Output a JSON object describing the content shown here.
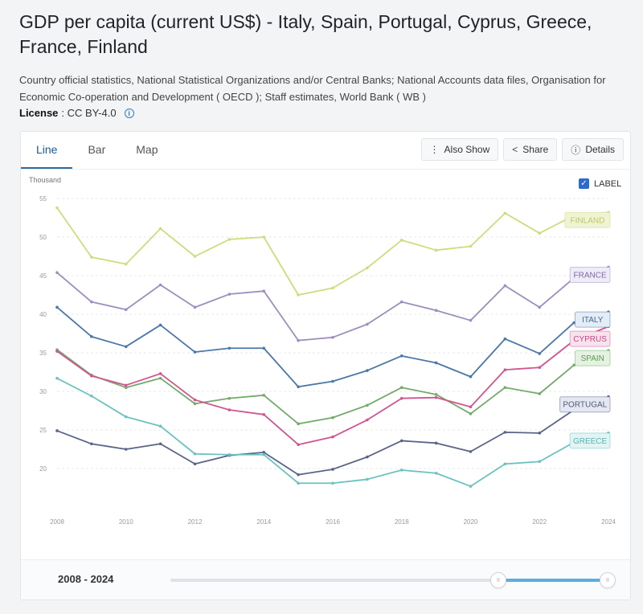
{
  "header": {
    "title": "GDP per capita (current US$) - Italy, Spain, Portugal, Cyprus, Greece, France, Finland",
    "source": "Country official statistics, National Statistical Organizations and/or Central Banks; National Accounts data files, Organisation for Economic Co-operation and Development ( OECD ); Staff estimates, World Bank ( WB )",
    "license_label": "License",
    "license_value": ": CC BY-4.0"
  },
  "tabs": [
    {
      "label": "Line",
      "active": true
    },
    {
      "label": "Bar",
      "active": false
    },
    {
      "label": "Map",
      "active": false
    }
  ],
  "actions": {
    "also_show": "Also Show",
    "share": "Share",
    "details": "Details"
  },
  "label_toggle": {
    "label": "LABEL",
    "checked": true
  },
  "footer": {
    "range_start": "2008",
    "range_separator": " - ",
    "range_end": "2024",
    "handle_start_text": "II",
    "handle_end_text": "II",
    "selected_fraction": [
      0.75,
      1.0
    ]
  },
  "chart_data": {
    "type": "line",
    "ylabel": "Thousand",
    "xlim": [
      2008,
      2024
    ],
    "ylim": [
      15,
      55
    ],
    "y_ticks": [
      20,
      25,
      30,
      35,
      40,
      45,
      50,
      55
    ],
    "x_ticks": [
      2008,
      2010,
      2012,
      2014,
      2016,
      2018,
      2020,
      2022,
      2024
    ],
    "grid": true,
    "x": [
      2008,
      2009,
      2010,
      2011,
      2012,
      2013,
      2014,
      2015,
      2016,
      2017,
      2018,
      2019,
      2020,
      2021,
      2022,
      2023,
      2024
    ],
    "series": [
      {
        "name": "FINLAND",
        "color": "#cddc7c",
        "label_bg": "#f1f4d4",
        "label_text": "#bcc767",
        "values": [
          53.8,
          47.4,
          46.5,
          51.1,
          47.5,
          49.7,
          50.0,
          42.5,
          43.4,
          46.0,
          49.6,
          48.3,
          48.8,
          53.1,
          50.5,
          52.8,
          53.2
        ]
      },
      {
        "name": "FRANCE",
        "color": "#9e8dc0",
        "label_bg": "#f0ecf7",
        "label_text": "#7d6aa8",
        "values": [
          45.4,
          41.6,
          40.6,
          43.8,
          40.9,
          42.6,
          43.0,
          36.6,
          37.0,
          38.7,
          41.6,
          40.5,
          39.2,
          43.7,
          40.9,
          44.7,
          46.1
        ]
      },
      {
        "name": "ITALY",
        "color": "#4a78a8",
        "label_bg": "#e4edf6",
        "label_text": "#3f6d9c",
        "values": [
          40.9,
          37.1,
          35.8,
          38.6,
          35.1,
          35.6,
          35.6,
          30.6,
          31.3,
          32.7,
          34.6,
          33.7,
          31.9,
          36.8,
          34.9,
          38.9,
          40.3
        ]
      },
      {
        "name": "SPAIN",
        "color": "#74aa6a",
        "label_bg": "#e5f2e2",
        "label_text": "#5f9855",
        "values": [
          35.4,
          32.1,
          30.5,
          31.7,
          28.4,
          29.1,
          29.5,
          25.8,
          26.6,
          28.2,
          30.5,
          29.6,
          27.1,
          30.5,
          29.7,
          33.4,
          35.3
        ]
      },
      {
        "name": "CYPRUS",
        "color": "#d05590",
        "label_bg": "#f8e2ed",
        "label_text": "#c24a84",
        "values": [
          35.2,
          32.0,
          30.8,
          32.3,
          28.9,
          27.6,
          27.0,
          23.1,
          24.1,
          26.3,
          29.1,
          29.2,
          28.0,
          32.8,
          33.1,
          36.6,
          38.4
        ]
      },
      {
        "name": "PORTUGAL",
        "color": "#5a6488",
        "label_bg": "#e6e8f1",
        "label_text": "#515b7e",
        "values": [
          24.9,
          23.2,
          22.5,
          23.2,
          20.6,
          21.7,
          22.1,
          19.2,
          19.9,
          21.5,
          23.6,
          23.3,
          22.2,
          24.7,
          24.6,
          27.6,
          29.3
        ]
      },
      {
        "name": "GREECE",
        "color": "#6cc1c1",
        "label_bg": "#e2f4f4",
        "label_text": "#58b1b1",
        "values": [
          31.7,
          29.4,
          26.7,
          25.5,
          21.9,
          21.8,
          21.8,
          18.1,
          18.1,
          18.6,
          19.8,
          19.4,
          17.7,
          20.6,
          20.9,
          23.4,
          24.6
        ]
      }
    ]
  }
}
